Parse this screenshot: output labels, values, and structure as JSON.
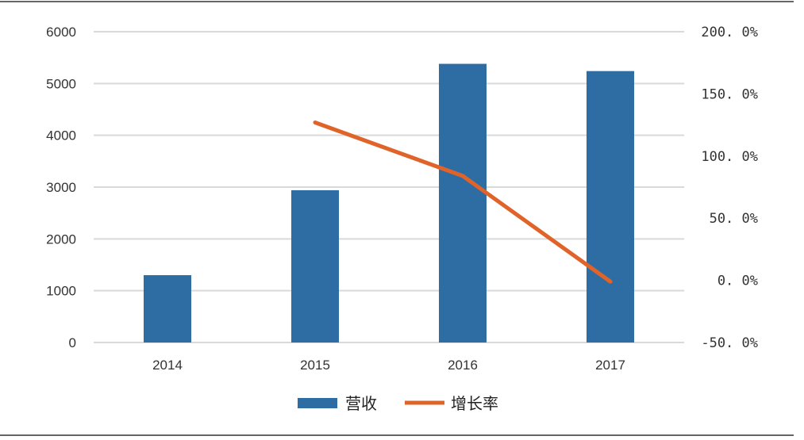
{
  "chart_data": {
    "type": "bar+line",
    "categories": [
      "2014",
      "2015",
      "2016",
      "2017"
    ],
    "series": [
      {
        "name": "营收",
        "type": "bar",
        "axis": "left",
        "color": "#2e6da4",
        "values": [
          1300,
          2940,
          5380,
          5240
        ]
      },
      {
        "name": "增长率",
        "type": "line",
        "axis": "right",
        "color": "#e0642a",
        "values": [
          null,
          127,
          84,
          -1
        ]
      }
    ],
    "left_axis": {
      "ylim": [
        0,
        6000
      ],
      "ticks": [
        "0",
        "1000",
        "2000",
        "3000",
        "4000",
        "5000",
        "6000"
      ]
    },
    "right_axis": {
      "ylim": [
        -50,
        200
      ],
      "unit": "%",
      "ticks": [
        "-50.0%",
        "0.0%",
        "50.0%",
        "100.0%",
        "150.0%",
        "200.0%"
      ]
    },
    "grid": true,
    "legend_position": "bottom",
    "title": "",
    "xlabel": "",
    "ylabel": ""
  }
}
